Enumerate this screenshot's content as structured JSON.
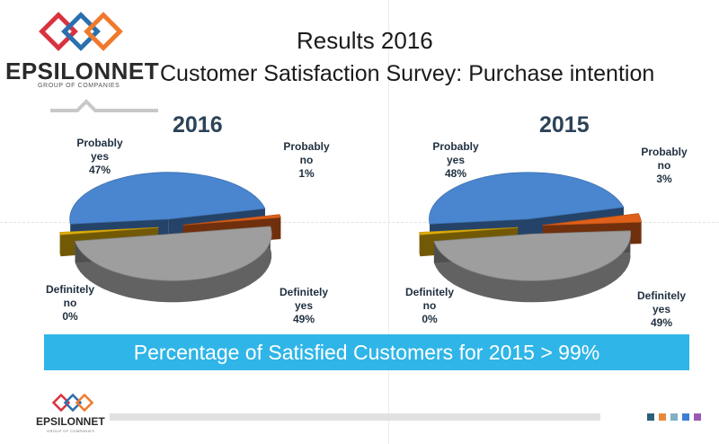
{
  "brand": {
    "name": "EPSILONNET",
    "tagline": "GROUP OF COMPANIES"
  },
  "header": {
    "title": "Results 2016",
    "subtitle": "Customer Satisfaction Survey: Purchase intention"
  },
  "chart_data": [
    {
      "type": "pie",
      "title": "2016",
      "labels": [
        "Probably yes",
        "Probably no",
        "Definitely yes",
        "Definitely no"
      ],
      "values": [
        47,
        1,
        49,
        0
      ],
      "unit": "%",
      "colors": [
        "#4a86cf",
        "#e0601a",
        "#9e9e9e",
        "#e3b10a"
      ]
    },
    {
      "type": "pie",
      "title": "2015",
      "labels": [
        "Probably yes",
        "Probably no",
        "Definitely yes",
        "Definitely no"
      ],
      "values": [
        48,
        3,
        49,
        0
      ],
      "unit": "%",
      "colors": [
        "#4a86cf",
        "#e0601a",
        "#9e9e9e",
        "#e3b10a"
      ]
    }
  ],
  "labels_2016": {
    "probably_yes": [
      "Probably",
      "yes",
      "47%"
    ],
    "probably_no": [
      "Probably",
      "no",
      "1%"
    ],
    "definitely_no": [
      "Definitely",
      "no",
      "0%"
    ],
    "definitely_yes": [
      "Definitely",
      "yes",
      "49%"
    ]
  },
  "labels_2015": {
    "probably_yes": [
      "Probably",
      "yes",
      "48%"
    ],
    "probably_no": [
      "Probably",
      "no",
      "3%"
    ],
    "definitely_no": [
      "Definitely",
      "no",
      "0%"
    ],
    "definitely_yes": [
      "Definitely",
      "yes",
      "49%"
    ]
  },
  "banner": {
    "text": "Percentage of Satisfied Customers for 2015 > 99%"
  },
  "footer_colors": [
    "#2b5f7a",
    "#e98a3a",
    "#7fb0c6",
    "#3d7fd4",
    "#9b59b6"
  ]
}
